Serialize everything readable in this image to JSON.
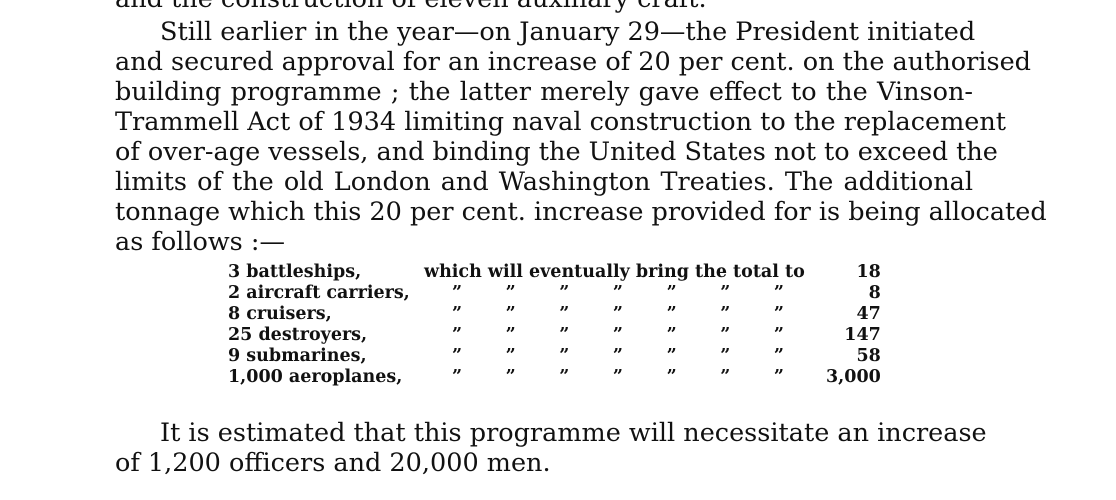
{
  "paragraph1_tail": "and the construction of eleven auxiliary craft.",
  "paragraph2": [
    "Still earlier in the year—on January 29—the President initiated",
    "and secured approval for an increase of 20 per cent. on the authorised",
    "building programme ; the latter merely gave effect to the Vinson-",
    "Trammell Act of 1934 limiting naval construction to the replacement",
    "of over-age vessels, and binding the United States not to exceed the",
    "limits of the old London and Washington Treaties. The additional",
    "tonnage which this 20 per cent. increase provided for is being allocated",
    "as follows :—"
  ],
  "allocation": {
    "phrase": "which will eventually bring the total to",
    "ditto_mark": "”",
    "rows": [
      {
        "item": "3 battleships,",
        "total": "18"
      },
      {
        "item": "2 aircraft carriers,",
        "total": "8"
      },
      {
        "item": "8 cruisers,",
        "total": "47"
      },
      {
        "item": "25 destroyers,",
        "total": "147"
      },
      {
        "item": "9 submarines,",
        "total": "58"
      },
      {
        "item": "1,000 aeroplanes,",
        "total": "3,000"
      }
    ]
  },
  "paragraph3": [
    "It is estimated that this programme will necessitate an increase",
    "of 1,200 officers and 20,000 men."
  ]
}
